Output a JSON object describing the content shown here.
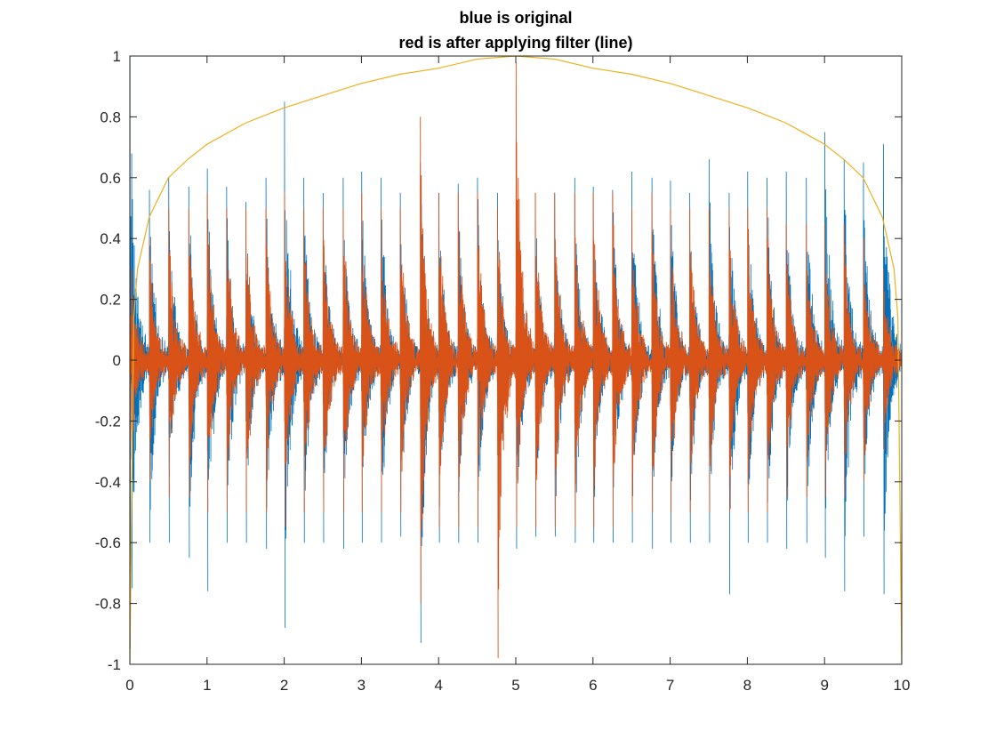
{
  "chart_data": {
    "type": "line",
    "title_lines": [
      "blue is original",
      "red is after applying filter (line)"
    ],
    "xlabel": "",
    "ylabel": "",
    "xlim": [
      0,
      10
    ],
    "ylim": [
      -1,
      1
    ],
    "xticks": [
      0,
      1,
      2,
      3,
      4,
      5,
      6,
      7,
      8,
      9,
      10
    ],
    "yticks": [
      1,
      0.8,
      0.6,
      0.4,
      0.2,
      0,
      -0.2,
      -0.4,
      -0.6,
      -0.8,
      -1
    ],
    "xtick_labels": [
      "0",
      "1",
      "2",
      "3",
      "4",
      "5",
      "6",
      "7",
      "8",
      "9",
      "10"
    ],
    "ytick_labels": [
      "1",
      "0.8",
      "0.6",
      "0.4",
      "0.2",
      "0",
      "-0.2",
      "-0.4",
      "-0.6",
      "-0.8",
      "-1"
    ],
    "grid": false,
    "box": true,
    "series": [
      {
        "color": "#0072BD",
        "kind": "signal",
        "beat_times": [
          0.02,
          0.25,
          0.5,
          0.76,
          1.0,
          1.25,
          1.5,
          1.76,
          2.0,
          2.25,
          2.5,
          2.76,
          3.0,
          3.25,
          3.5,
          3.76,
          4.0,
          4.25,
          4.5,
          4.76,
          5.0,
          5.25,
          5.5,
          5.76,
          6.0,
          6.25,
          6.5,
          6.76,
          7.0,
          7.25,
          7.5,
          7.76,
          8.0,
          8.25,
          8.5,
          8.76,
          9.0,
          9.25,
          9.5,
          9.76
        ],
        "peak_max": [
          0.68,
          0.56,
          0.6,
          0.57,
          0.63,
          0.57,
          0.52,
          0.6,
          0.85,
          0.6,
          0.55,
          0.6,
          0.62,
          0.6,
          0.55,
          0.65,
          0.55,
          0.58,
          0.6,
          0.55,
          0.72,
          0.55,
          0.55,
          0.6,
          0.57,
          0.56,
          0.62,
          0.6,
          0.59,
          0.55,
          0.66,
          0.55,
          0.62,
          0.6,
          0.62,
          0.6,
          0.75,
          0.66,
          0.65,
          0.71
        ],
        "peak_min": [
          -0.75,
          -0.6,
          -0.6,
          -0.65,
          -0.76,
          -0.6,
          -0.6,
          -0.62,
          -0.88,
          -0.6,
          -0.6,
          -0.62,
          -0.6,
          -0.6,
          -0.58,
          -0.93,
          -0.6,
          -0.6,
          -0.6,
          -0.6,
          -0.62,
          -0.58,
          -0.58,
          -0.6,
          -0.6,
          -0.6,
          -0.6,
          -0.62,
          -0.6,
          -0.6,
          -0.6,
          -0.77,
          -0.6,
          -0.6,
          -0.62,
          -0.6,
          -0.65,
          -0.76,
          -0.58,
          -0.77
        ]
      },
      {
        "color": "#D95319",
        "kind": "signal",
        "beat_times": [
          0.02,
          0.25,
          0.5,
          0.76,
          1.0,
          1.25,
          1.5,
          1.76,
          2.0,
          2.25,
          2.5,
          2.76,
          3.0,
          3.25,
          3.5,
          3.76,
          4.0,
          4.25,
          4.5,
          4.76,
          5.0,
          5.25,
          5.5,
          5.76,
          6.0,
          6.25,
          6.5,
          6.76,
          7.0,
          7.25,
          7.5,
          7.76,
          8.0,
          8.25,
          8.5,
          8.76,
          9.0,
          9.25,
          9.5,
          9.76
        ],
        "peak_max": [
          0.3,
          0.4,
          0.5,
          0.5,
          0.55,
          0.5,
          0.5,
          0.5,
          0.55,
          0.5,
          0.5,
          0.5,
          0.55,
          0.5,
          0.5,
          0.8,
          0.55,
          0.55,
          0.55,
          0.5,
          0.98,
          0.55,
          0.55,
          0.55,
          0.55,
          0.55,
          0.5,
          0.55,
          0.5,
          0.5,
          0.5,
          0.5,
          0.5,
          0.5,
          0.45,
          0.45,
          0.45,
          0.45,
          0.4,
          0.3
        ],
        "peak_min": [
          -0.3,
          -0.4,
          -0.45,
          -0.45,
          -0.5,
          -0.5,
          -0.5,
          -0.5,
          -0.55,
          -0.5,
          -0.5,
          -0.5,
          -0.5,
          -0.5,
          -0.5,
          -0.8,
          -0.55,
          -0.55,
          -0.55,
          -0.98,
          -0.55,
          -0.55,
          -0.55,
          -0.55,
          -0.55,
          -0.55,
          -0.5,
          -0.5,
          -0.5,
          -0.5,
          -0.5,
          -0.5,
          -0.5,
          -0.5,
          -0.45,
          -0.45,
          -0.45,
          -0.45,
          -0.4,
          -0.3
        ]
      },
      {
        "color": "#EDB120",
        "kind": "window",
        "x": [
          0,
          0.05,
          0.1,
          0.25,
          0.5,
          0.75,
          1,
          1.5,
          2,
          2.5,
          3,
          3.5,
          4,
          4.5,
          5,
          5.5,
          6,
          6.5,
          7,
          7.5,
          8,
          8.5,
          9,
          9.25,
          9.5,
          9.75,
          9.9,
          9.95,
          10
        ],
        "y": [
          -1,
          0.14,
          0.3,
          0.47,
          0.6,
          0.66,
          0.71,
          0.78,
          0.83,
          0.87,
          0.91,
          0.94,
          0.96,
          0.99,
          1.0,
          0.99,
          0.96,
          0.94,
          0.91,
          0.87,
          0.83,
          0.78,
          0.71,
          0.66,
          0.6,
          0.47,
          0.3,
          0.14,
          -1
        ]
      }
    ]
  }
}
